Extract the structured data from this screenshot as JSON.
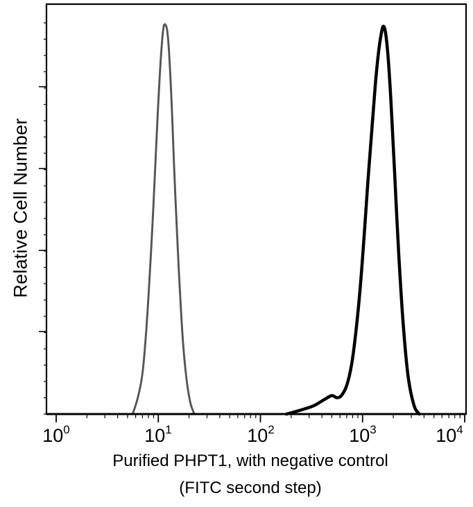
{
  "chart_data": {
    "type": "line",
    "title": "",
    "xlabel": "Purified PHPT1, with negative control",
    "xlabel_line2": "(FITC second step)",
    "ylabel": "Relative Cell Number",
    "xscale": "log",
    "xlim": [
      1,
      10000
    ],
    "ylim": [
      0,
      100
    ],
    "x_tick_labels": [
      {
        "base": "10",
        "exp": "0",
        "value": 1
      },
      {
        "base": "10",
        "exp": "1",
        "value": 10
      },
      {
        "base": "10",
        "exp": "2",
        "value": 100
      },
      {
        "base": "10",
        "exp": "3",
        "value": 1000
      },
      {
        "base": "10",
        "exp": "4",
        "value": 10000
      }
    ],
    "y_major_ticks_count": 5,
    "grid": false,
    "legend": null,
    "series": [
      {
        "name": "Negative control",
        "style": "dotted-grey",
        "color": "#555555",
        "x": [
          5.6,
          6.3,
          7.0,
          7.6,
          8.2,
          8.8,
          9.4,
          10.0,
          10.6,
          11.2,
          11.7,
          12.3,
          12.9,
          13.6,
          14.3,
          15.2,
          16.2,
          17.4,
          18.8,
          20.5,
          22.5
        ],
        "y": [
          0,
          4,
          10,
          20,
          33,
          47,
          62,
          76,
          87,
          94,
          95,
          93,
          86,
          74,
          60,
          45,
          31,
          18,
          9,
          3,
          0
        ]
      },
      {
        "name": "Purified PHPT1",
        "style": "solid-black",
        "color": "#000000",
        "x": [
          180,
          250,
          330,
          420,
          500,
          560,
          620,
          700,
          780,
          860,
          950,
          1040,
          1130,
          1230,
          1330,
          1430,
          1530,
          1600,
          1680,
          1780,
          1900,
          2050,
          2250,
          2500,
          2800,
          3200,
          3600
        ],
        "y": [
          0,
          1,
          2,
          3.5,
          4.5,
          4,
          4.5,
          7,
          12,
          20,
          31,
          44,
          57,
          69,
          80,
          88,
          93,
          94.6,
          93,
          87,
          76,
          60,
          40,
          22,
          9,
          2,
          0
        ]
      }
    ]
  },
  "labels": {
    "ylabel": "Relative Cell Number",
    "xlabel_line1": "Purified PHPT1, with negative control",
    "xlabel_line2": "(FITC second step)",
    "ticks": [
      {
        "base": "10",
        "exp": "0"
      },
      {
        "base": "10",
        "exp": "1"
      },
      {
        "base": "10",
        "exp": "2"
      },
      {
        "base": "10",
        "exp": "3"
      },
      {
        "base": "10",
        "exp": "4"
      }
    ]
  }
}
